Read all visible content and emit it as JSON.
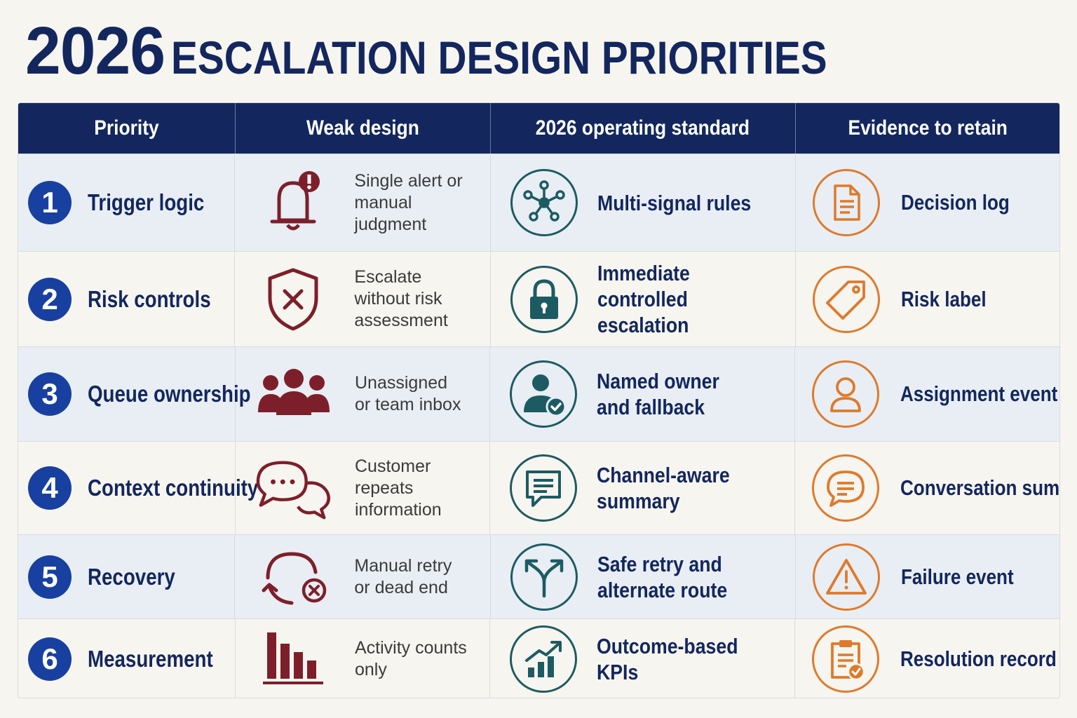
{
  "title": {
    "year": "2026",
    "rest": "ESCALATION DESIGN PRIORITIES"
  },
  "columns": [
    "Priority",
    "Weak design",
    "2026 operating standard",
    "Evidence to retain"
  ],
  "colors": {
    "navy": "#13275e",
    "number_badge": "#1840a0",
    "weak": "#7d1f2b",
    "standard": "#1d5b63",
    "evidence": "#de7a2c",
    "alt_row": "#e8eef3"
  },
  "rows": [
    {
      "num": "1",
      "priority": "Trigger logic",
      "weak_icon": "bell-alert-icon",
      "weak": "Single alert or manual judgment",
      "std_icon": "network-nodes-icon",
      "standard": "Multi-signal rules",
      "ev_icon": "document-icon",
      "evidence": "Decision log"
    },
    {
      "num": "2",
      "priority": "Risk controls",
      "weak_icon": "shield-x-icon",
      "weak": "Escalate without risk assessment",
      "std_icon": "lock-icon",
      "standard": "Immediate controlled\nescalation",
      "ev_icon": "tag-icon",
      "evidence": "Risk label"
    },
    {
      "num": "3",
      "priority": "Queue ownership",
      "weak_icon": "group-icon",
      "weak": "Unassigned or team inbox",
      "std_icon": "user-check-icon",
      "standard": "Named owner\nand fallback",
      "ev_icon": "user-icon",
      "evidence": "Assignment event"
    },
    {
      "num": "4",
      "priority": "Context continuity",
      "weak_icon": "chat-bubbles-icon",
      "weak": "Customer repeats information",
      "std_icon": "message-icon",
      "standard": "Channel-aware\nsummary",
      "ev_icon": "chat-icon",
      "evidence": "Conversation summary"
    },
    {
      "num": "5",
      "priority": "Recovery",
      "weak_icon": "retry-fail-icon",
      "weak": "Manual retry or dead end",
      "std_icon": "split-route-icon",
      "standard": "Safe retry and\nalternate route",
      "ev_icon": "warning-icon",
      "evidence": "Failure event"
    },
    {
      "num": "6",
      "priority": "Measurement",
      "weak_icon": "bar-chart-icon",
      "weak": "Activity counts only",
      "std_icon": "trend-chart-icon",
      "standard": "Outcome-based\nKPIs",
      "ev_icon": "clipboard-check-icon",
      "evidence": "Resolution record"
    }
  ]
}
